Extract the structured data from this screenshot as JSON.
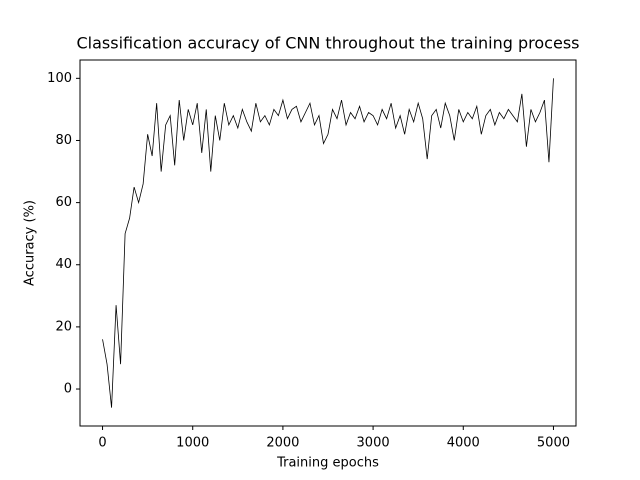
{
  "chart_data": {
    "type": "line",
    "title": "Classification accuracy of CNN throughout the training process",
    "xlabel": "Training epochs",
    "ylabel": "Accuracy (%)",
    "x": [
      0,
      50,
      100,
      150,
      200,
      250,
      300,
      350,
      400,
      450,
      500,
      550,
      600,
      650,
      700,
      750,
      800,
      850,
      900,
      950,
      1000,
      1050,
      1100,
      1150,
      1200,
      1250,
      1300,
      1350,
      1400,
      1450,
      1500,
      1550,
      1600,
      1650,
      1700,
      1750,
      1800,
      1850,
      1900,
      1950,
      2000,
      2050,
      2100,
      2150,
      2200,
      2250,
      2300,
      2350,
      2400,
      2450,
      2500,
      2550,
      2600,
      2650,
      2700,
      2750,
      2800,
      2850,
      2900,
      2950,
      3000,
      3050,
      3100,
      3150,
      3200,
      3250,
      3300,
      3350,
      3400,
      3450,
      3500,
      3550,
      3600,
      3650,
      3700,
      3750,
      3800,
      3850,
      3900,
      3950,
      4000,
      4050,
      4100,
      4150,
      4200,
      4250,
      4300,
      4350,
      4400,
      4450,
      4500,
      4550,
      4600,
      4650,
      4700,
      4750,
      4800,
      4850,
      4900,
      4950,
      5000
    ],
    "series": [
      {
        "name": "Accuracy",
        "color": "#000000",
        "values": [
          16,
          8,
          -6,
          27,
          8,
          50,
          55,
          65,
          60,
          66,
          82,
          75,
          92,
          70,
          85,
          88,
          72,
          93,
          80,
          90,
          85,
          92,
          76,
          90,
          70,
          88,
          80,
          92,
          85,
          88,
          84,
          90,
          86,
          83,
          92,
          86,
          88,
          85,
          90,
          88,
          93,
          87,
          90,
          91,
          86,
          89,
          92,
          85,
          88,
          79,
          82,
          90,
          87,
          93,
          85,
          89,
          87,
          91,
          86,
          89,
          88,
          85,
          90,
          87,
          92,
          84,
          88,
          82,
          90,
          86,
          92,
          87,
          74,
          88,
          90,
          84,
          92,
          88,
          80,
          90,
          86,
          89,
          87,
          91,
          82,
          88,
          90,
          85,
          89,
          87,
          90,
          88,
          86,
          95,
          78,
          90,
          86,
          89,
          93,
          73,
          100
        ]
      }
    ],
    "xlim": [
      -250,
      5250
    ],
    "ylim": [
      -11.9,
      105.9
    ],
    "xticks": [
      0,
      1000,
      2000,
      3000,
      4000,
      5000
    ],
    "yticks": [
      0,
      20,
      40,
      60,
      80,
      100
    ]
  }
}
